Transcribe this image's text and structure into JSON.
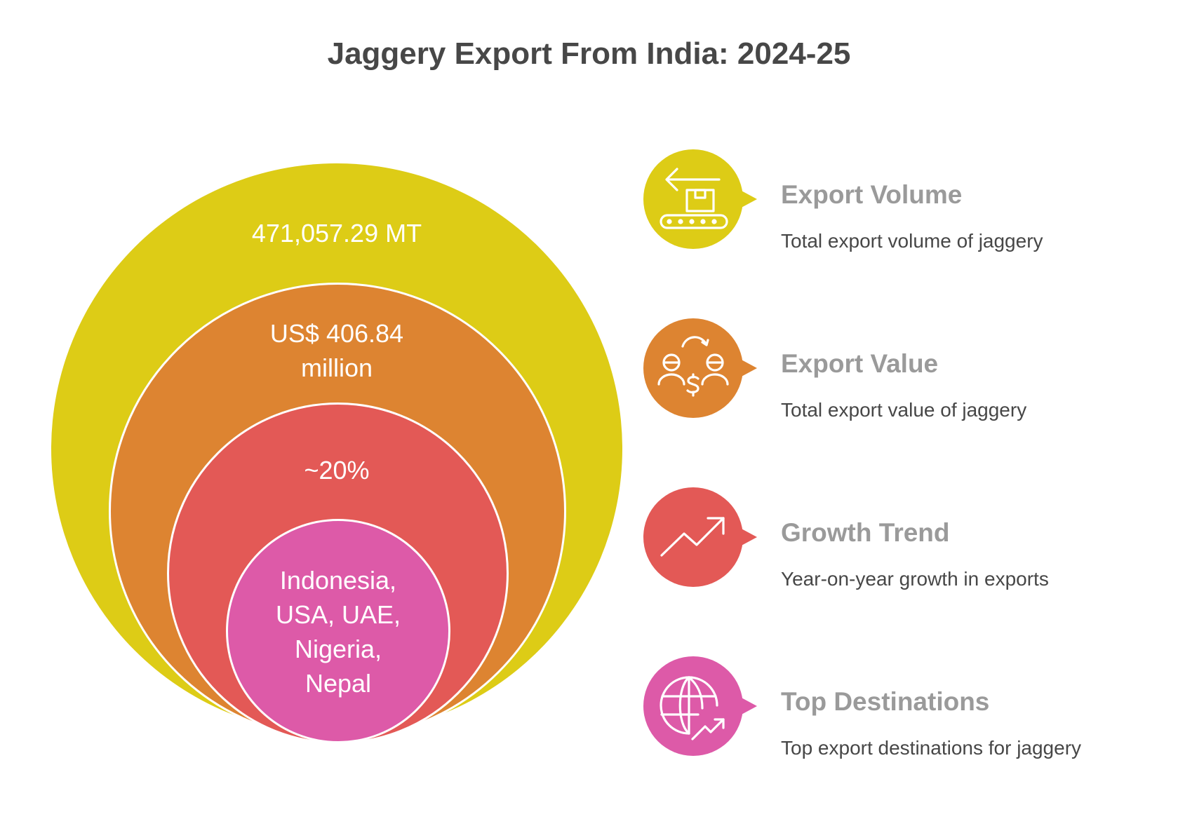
{
  "title": "Jaggery Export From India: 2024-25",
  "colors": {
    "volume": "#ddcc16",
    "value": "#dd8431",
    "growth": "#e35956",
    "destinations": "#dd5aa8",
    "title_text": "#474747",
    "item_title": "#9a9a9a"
  },
  "circles": {
    "volume_text": "471,057.29 MT",
    "value_text_line1": "US$ 406.84",
    "value_text_line2": "million",
    "growth_text": "~20%",
    "destinations_line1": "Indonesia,",
    "destinations_line2": "USA, UAE,",
    "destinations_line3": "Nigeria,",
    "destinations_line4": "Nepal"
  },
  "items": [
    {
      "title": "Export Volume",
      "desc": "Total export volume of jaggery",
      "icon": "conveyor-box-icon"
    },
    {
      "title": "Export Value",
      "desc": "Total export value of jaggery",
      "icon": "money-exchange-icon"
    },
    {
      "title": "Growth Trend",
      "desc": "Year-on-year growth in exports",
      "icon": "trend-up-icon"
    },
    {
      "title": "Top Destinations",
      "desc": "Top export destinations for jaggery",
      "icon": "globe-trend-icon"
    }
  ]
}
